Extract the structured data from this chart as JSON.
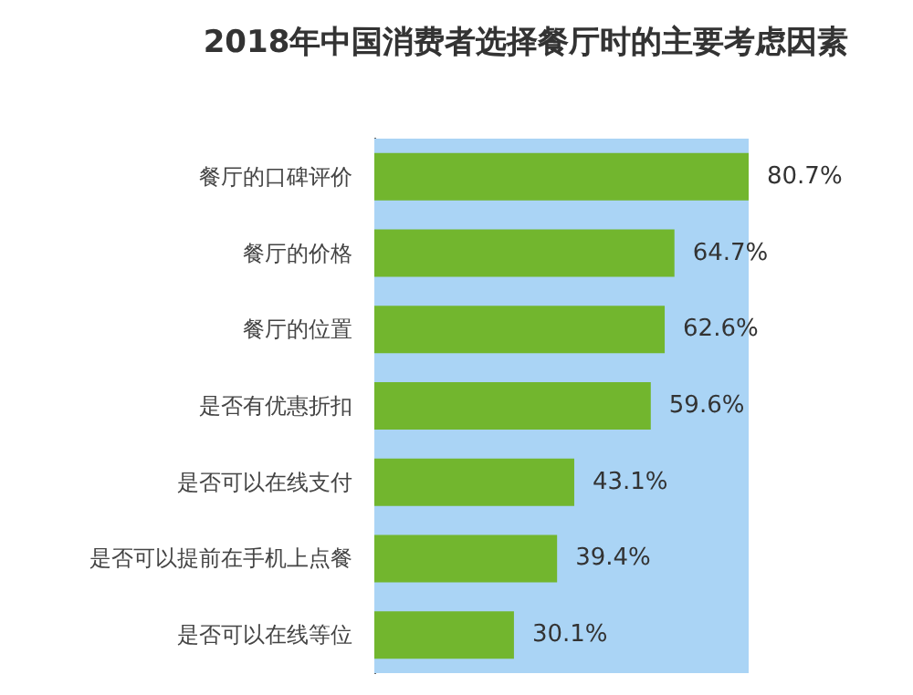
{
  "chart_data": {
    "type": "bar",
    "orientation": "horizontal",
    "title": "2018年中国消费者选择餐厅时的主要考虑因素",
    "categories": [
      "餐厅的口碑评价",
      "餐厅的价格",
      "餐厅的位置",
      "是否有优惠折扣",
      "是否可以在线支付",
      "是否可以提前在手机上点餐",
      "是否可以在线等位"
    ],
    "values": [
      80.7,
      64.7,
      62.6,
      59.6,
      43.1,
      39.4,
      30.1
    ],
    "value_labels": [
      "80.7%",
      "64.7%",
      "62.6%",
      "59.6%",
      "43.1%",
      "39.4%",
      "30.1%"
    ],
    "color": "#72b62e",
    "bands": [
      {
        "axis": "x",
        "from": 0,
        "to": 80.7,
        "color": "#aad4f5"
      }
    ]
  }
}
